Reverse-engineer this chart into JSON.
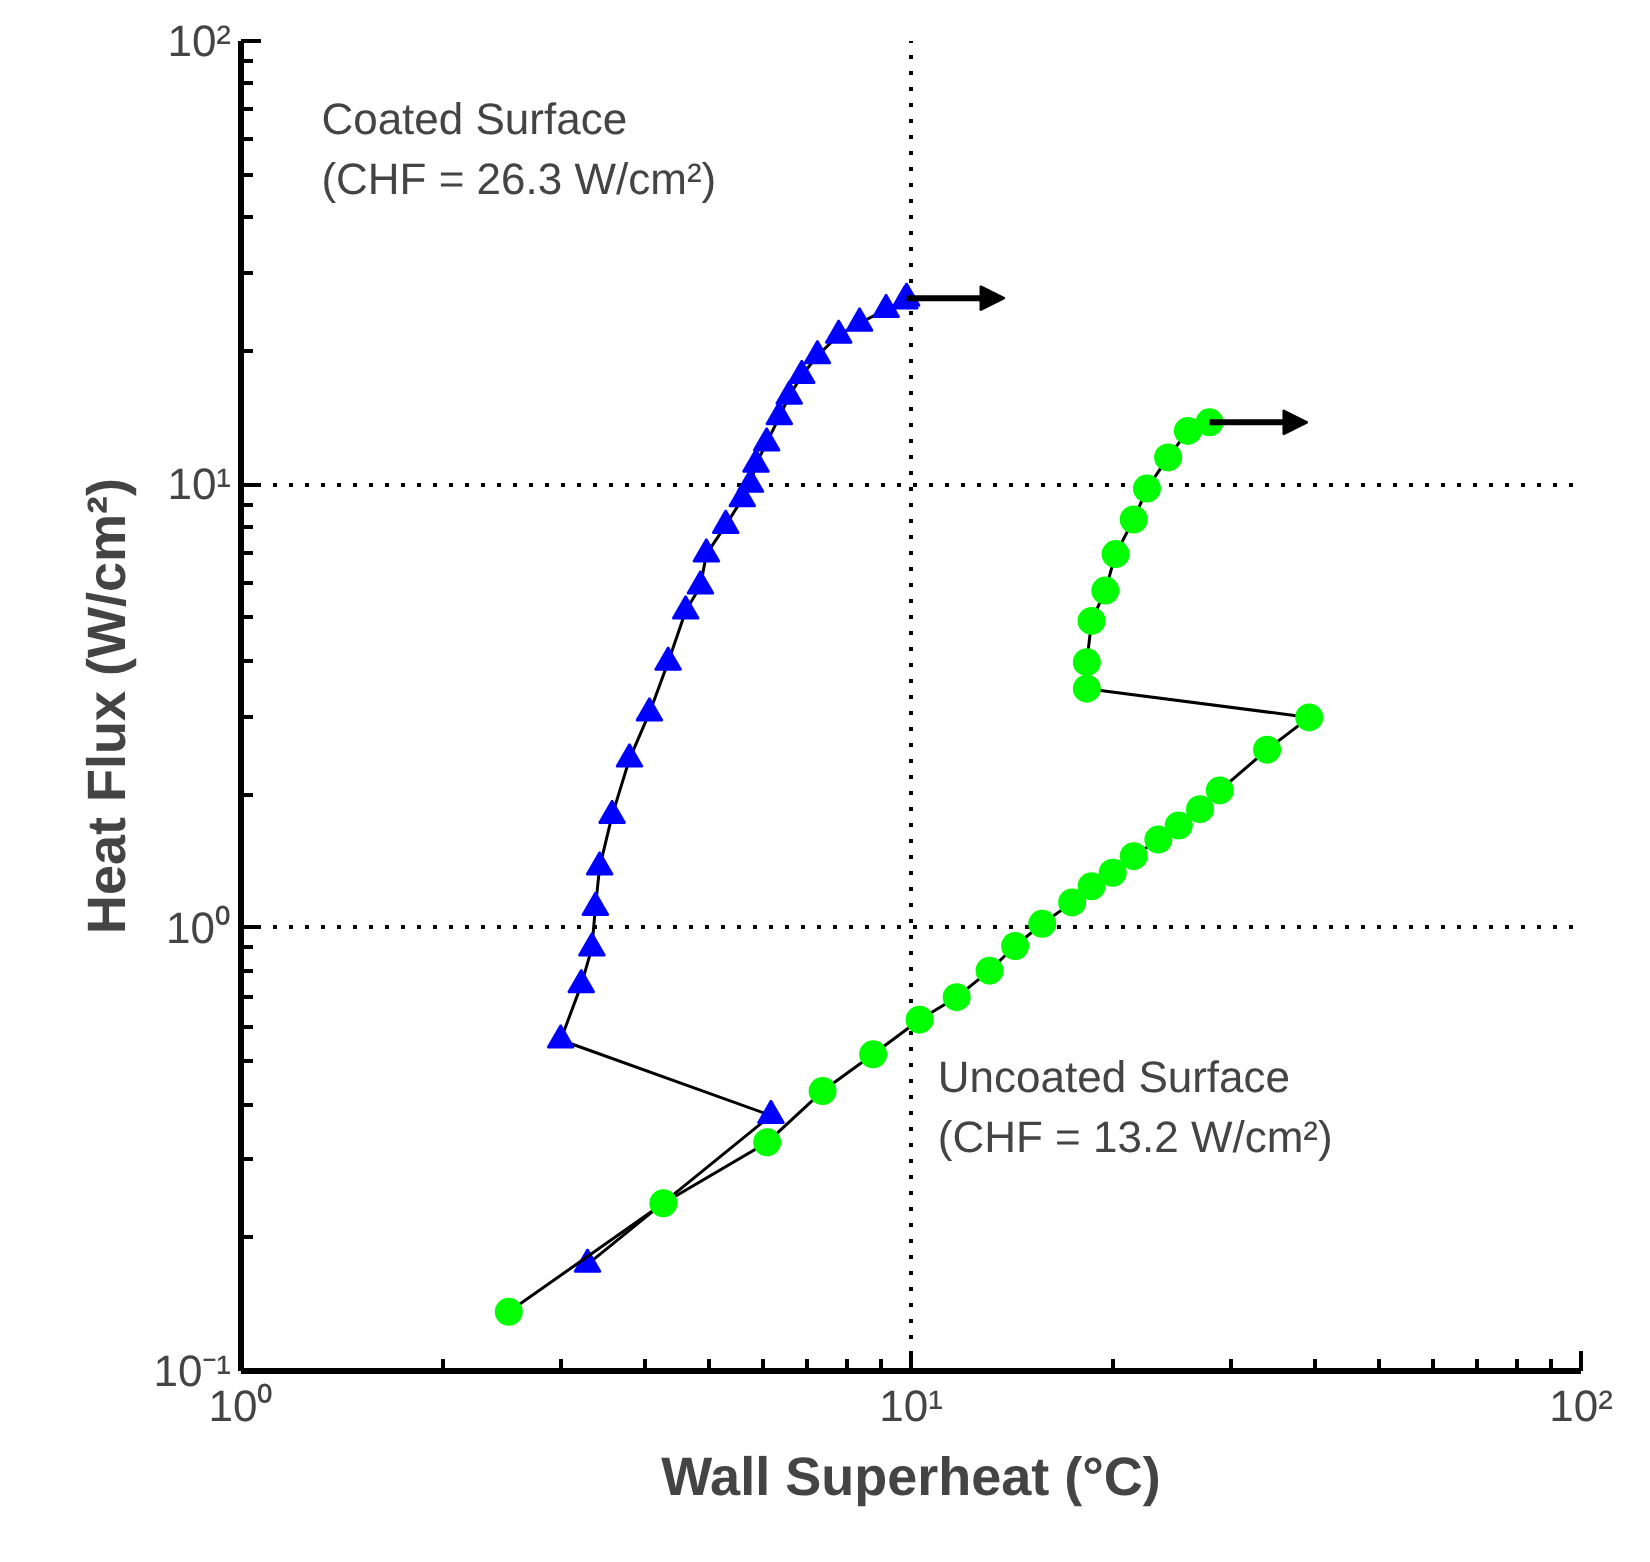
{
  "chart_data": {
    "type": "line",
    "xlabel": "Wall Superheat (°C)",
    "ylabel": "Heat Flux (W/cm²)",
    "log": "xy",
    "grid": true,
    "line_style": "solid",
    "xlim": [
      1,
      100
    ],
    "ylim": [
      0.1,
      100
    ],
    "xticks": [
      {
        "value": 1,
        "label": "10⁰"
      },
      {
        "value": 10,
        "label": "10¹"
      },
      {
        "value": 100,
        "label": "10²"
      }
    ],
    "yticks": [
      {
        "value": 0.1,
        "label": "10⁻¹"
      },
      {
        "value": 1,
        "label": "10⁰"
      },
      {
        "value": 10,
        "label": "10¹"
      },
      {
        "value": 100,
        "label": "10²"
      }
    ],
    "annotations": [
      "Coated Surface\n(CHF = 26.3 W/cm²)",
      "Uncoated Surface\n(CHF = 13.2 W/cm²)"
    ],
    "series": [
      {
        "color": "#0000ff",
        "marker": "triangle",
        "x": [
          3.29,
          6.18,
          3.0,
          3.22,
          3.34,
          3.38,
          3.43,
          3.58,
          3.8,
          4.07,
          4.34,
          4.61,
          4.85,
          4.95,
          5.29,
          5.6,
          5.76,
          5.87,
          6.09,
          6.36,
          6.58,
          6.87,
          7.25,
          7.8,
          8.38,
          9.18,
          9.79,
          9.85
        ],
        "values": [
          0.174,
          0.377,
          0.558,
          0.743,
          0.9,
          1.11,
          1.37,
          1.79,
          2.4,
          3.05,
          3.97,
          5.18,
          5.9,
          6.96,
          8.08,
          9.28,
          10.0,
          11.1,
          12.4,
          14.2,
          15.8,
          17.6,
          19.5,
          21.7,
          23.1,
          24.8,
          25.9,
          26.3
        ]
      },
      {
        "color": "#00ff00",
        "marker": "circle",
        "x": [
          2.51,
          4.27,
          6.1,
          7.38,
          8.78,
          10.3,
          11.7,
          13.1,
          14.3,
          15.7,
          17.4,
          18.6,
          20.0,
          21.5,
          23.4,
          25.1,
          27.0,
          28.9,
          34.0,
          39.3,
          18.3,
          18.3,
          18.6,
          19.5,
          20.2,
          21.5,
          22.5,
          24.2,
          25.9,
          27.9
        ],
        "values": [
          0.136,
          0.239,
          0.328,
          0.428,
          0.518,
          0.62,
          0.697,
          0.8,
          0.909,
          1.02,
          1.14,
          1.24,
          1.33,
          1.45,
          1.58,
          1.7,
          1.85,
          2.04,
          2.52,
          2.98,
          3.46,
          3.97,
          4.92,
          5.76,
          6.96,
          8.33,
          9.78,
          11.5,
          13.2,
          13.8
        ]
      }
    ]
  }
}
